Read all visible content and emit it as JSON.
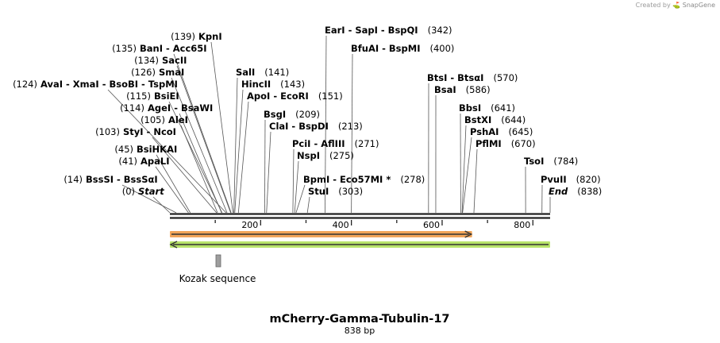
{
  "credit": {
    "prefix": "Created by",
    "brand": "SnapGene"
  },
  "sequence": {
    "name": "mCherry-Gamma-Tubulin-17",
    "length_label": "838 bp",
    "length": 838
  },
  "ruler": {
    "ticks": [
      200,
      400,
      600,
      800
    ]
  },
  "colors": {
    "orange_feature": "#f2a65a",
    "green_feature": "#b7e36a",
    "gray_feature": "#9e9e9e"
  },
  "features": [
    {
      "id": "orange",
      "name": "",
      "start": 1,
      "end": 666,
      "direction": "forward",
      "color": "#f2a65a"
    },
    {
      "id": "green",
      "name": "",
      "start": 1,
      "end": 838,
      "direction": "reverse",
      "color": "#b7e36a"
    },
    {
      "id": "kozak",
      "name": "Kozak sequence",
      "start": 107,
      "end": 116,
      "direction": "none",
      "color": "#9e9e9e"
    }
  ],
  "sites": [
    {
      "enz": "BssSI - BssSαI",
      "pos": 14,
      "num": "(14)",
      "numLeft": true,
      "italic": false
    },
    {
      "enz": "Start",
      "pos": 0,
      "num": "(0)",
      "numLeft": true,
      "italic": true
    },
    {
      "enz": "BsiHKAI",
      "pos": 45,
      "num": "(45)",
      "numLeft": true,
      "italic": false
    },
    {
      "enz": "ApaLI",
      "pos": 41,
      "num": "(41)",
      "numLeft": true,
      "italic": false
    },
    {
      "enz": "StyI - NcoI",
      "pos": 103,
      "num": "(103)",
      "numLeft": true,
      "italic": false
    },
    {
      "enz": "AleI",
      "pos": 105,
      "num": "(105)",
      "numLeft": true,
      "italic": false
    },
    {
      "enz": "AgeI - BsaWI",
      "pos": 114,
      "num": "(114)",
      "numLeft": true,
      "italic": false
    },
    {
      "enz": "BsiEI",
      "pos": 115,
      "num": "(115)",
      "numLeft": true,
      "italic": false
    },
    {
      "enz": "AvaI - XmaI - BsoBI - TspMI",
      "pos": 124,
      "num": "(124)",
      "numLeft": true,
      "italic": false
    },
    {
      "enz": "SmaI",
      "pos": 126,
      "num": "(126)",
      "numLeft": true,
      "italic": false
    },
    {
      "enz": "SacII",
      "pos": 134,
      "num": "(134)",
      "numLeft": true,
      "italic": false
    },
    {
      "enz": "BanI - Acc65I",
      "pos": 135,
      "num": "(135)",
      "numLeft": true,
      "italic": false
    },
    {
      "enz": "KpnI",
      "pos": 139,
      "num": "(139)",
      "numLeft": true,
      "italic": false
    },
    {
      "enz": "SalI",
      "pos": 141,
      "num": "(141)",
      "numLeft": false,
      "italic": false
    },
    {
      "enz": "HincII",
      "pos": 143,
      "num": "(143)",
      "numLeft": false,
      "italic": false
    },
    {
      "enz": "ApoI - EcoRI",
      "pos": 151,
      "num": "(151)",
      "numLeft": false,
      "italic": false
    },
    {
      "enz": "BsgI",
      "pos": 209,
      "num": "(209)",
      "numLeft": false,
      "italic": false
    },
    {
      "enz": "ClaI - BspDI",
      "pos": 213,
      "num": "(213)",
      "numLeft": false,
      "italic": false
    },
    {
      "enz": "PciI - AflIII",
      "pos": 271,
      "num": "(271)",
      "numLeft": false,
      "italic": false
    },
    {
      "enz": "NspI",
      "pos": 275,
      "num": "(275)",
      "numLeft": false,
      "italic": false
    },
    {
      "enz": "BpmI - Eco57MI *",
      "pos": 278,
      "num": "(278)",
      "numLeft": false,
      "italic": false
    },
    {
      "enz": "StuI",
      "pos": 303,
      "num": "(303)",
      "numLeft": false,
      "italic": false
    },
    {
      "enz": "EarI - SapI - BspQI",
      "pos": 342,
      "num": "(342)",
      "numLeft": false,
      "italic": false
    },
    {
      "enz": "BfuAI - BspMI",
      "pos": 400,
      "num": "(400)",
      "numLeft": false,
      "italic": false
    },
    {
      "enz": "BtsI - BtsαI",
      "pos": 570,
      "num": "(570)",
      "numLeft": false,
      "italic": false
    },
    {
      "enz": "BsaI",
      "pos": 586,
      "num": "(586)",
      "numLeft": false,
      "italic": false
    },
    {
      "enz": "BbsI",
      "pos": 641,
      "num": "(641)",
      "numLeft": false,
      "italic": false
    },
    {
      "enz": "BstXI",
      "pos": 644,
      "num": "(644)",
      "numLeft": false,
      "italic": false
    },
    {
      "enz": "PshAI",
      "pos": 645,
      "num": "(645)",
      "numLeft": false,
      "italic": false
    },
    {
      "enz": "PflMI",
      "pos": 670,
      "num": "(670)",
      "numLeft": false,
      "italic": false
    },
    {
      "enz": "TsoI",
      "pos": 784,
      "num": "(784)",
      "numLeft": false,
      "italic": false
    },
    {
      "enz": "PvuII",
      "pos": 820,
      "num": "(820)",
      "numLeft": false,
      "italic": false
    },
    {
      "enz": "End",
      "pos": 838,
      "num": "(838)",
      "numLeft": false,
      "italic": true
    }
  ]
}
